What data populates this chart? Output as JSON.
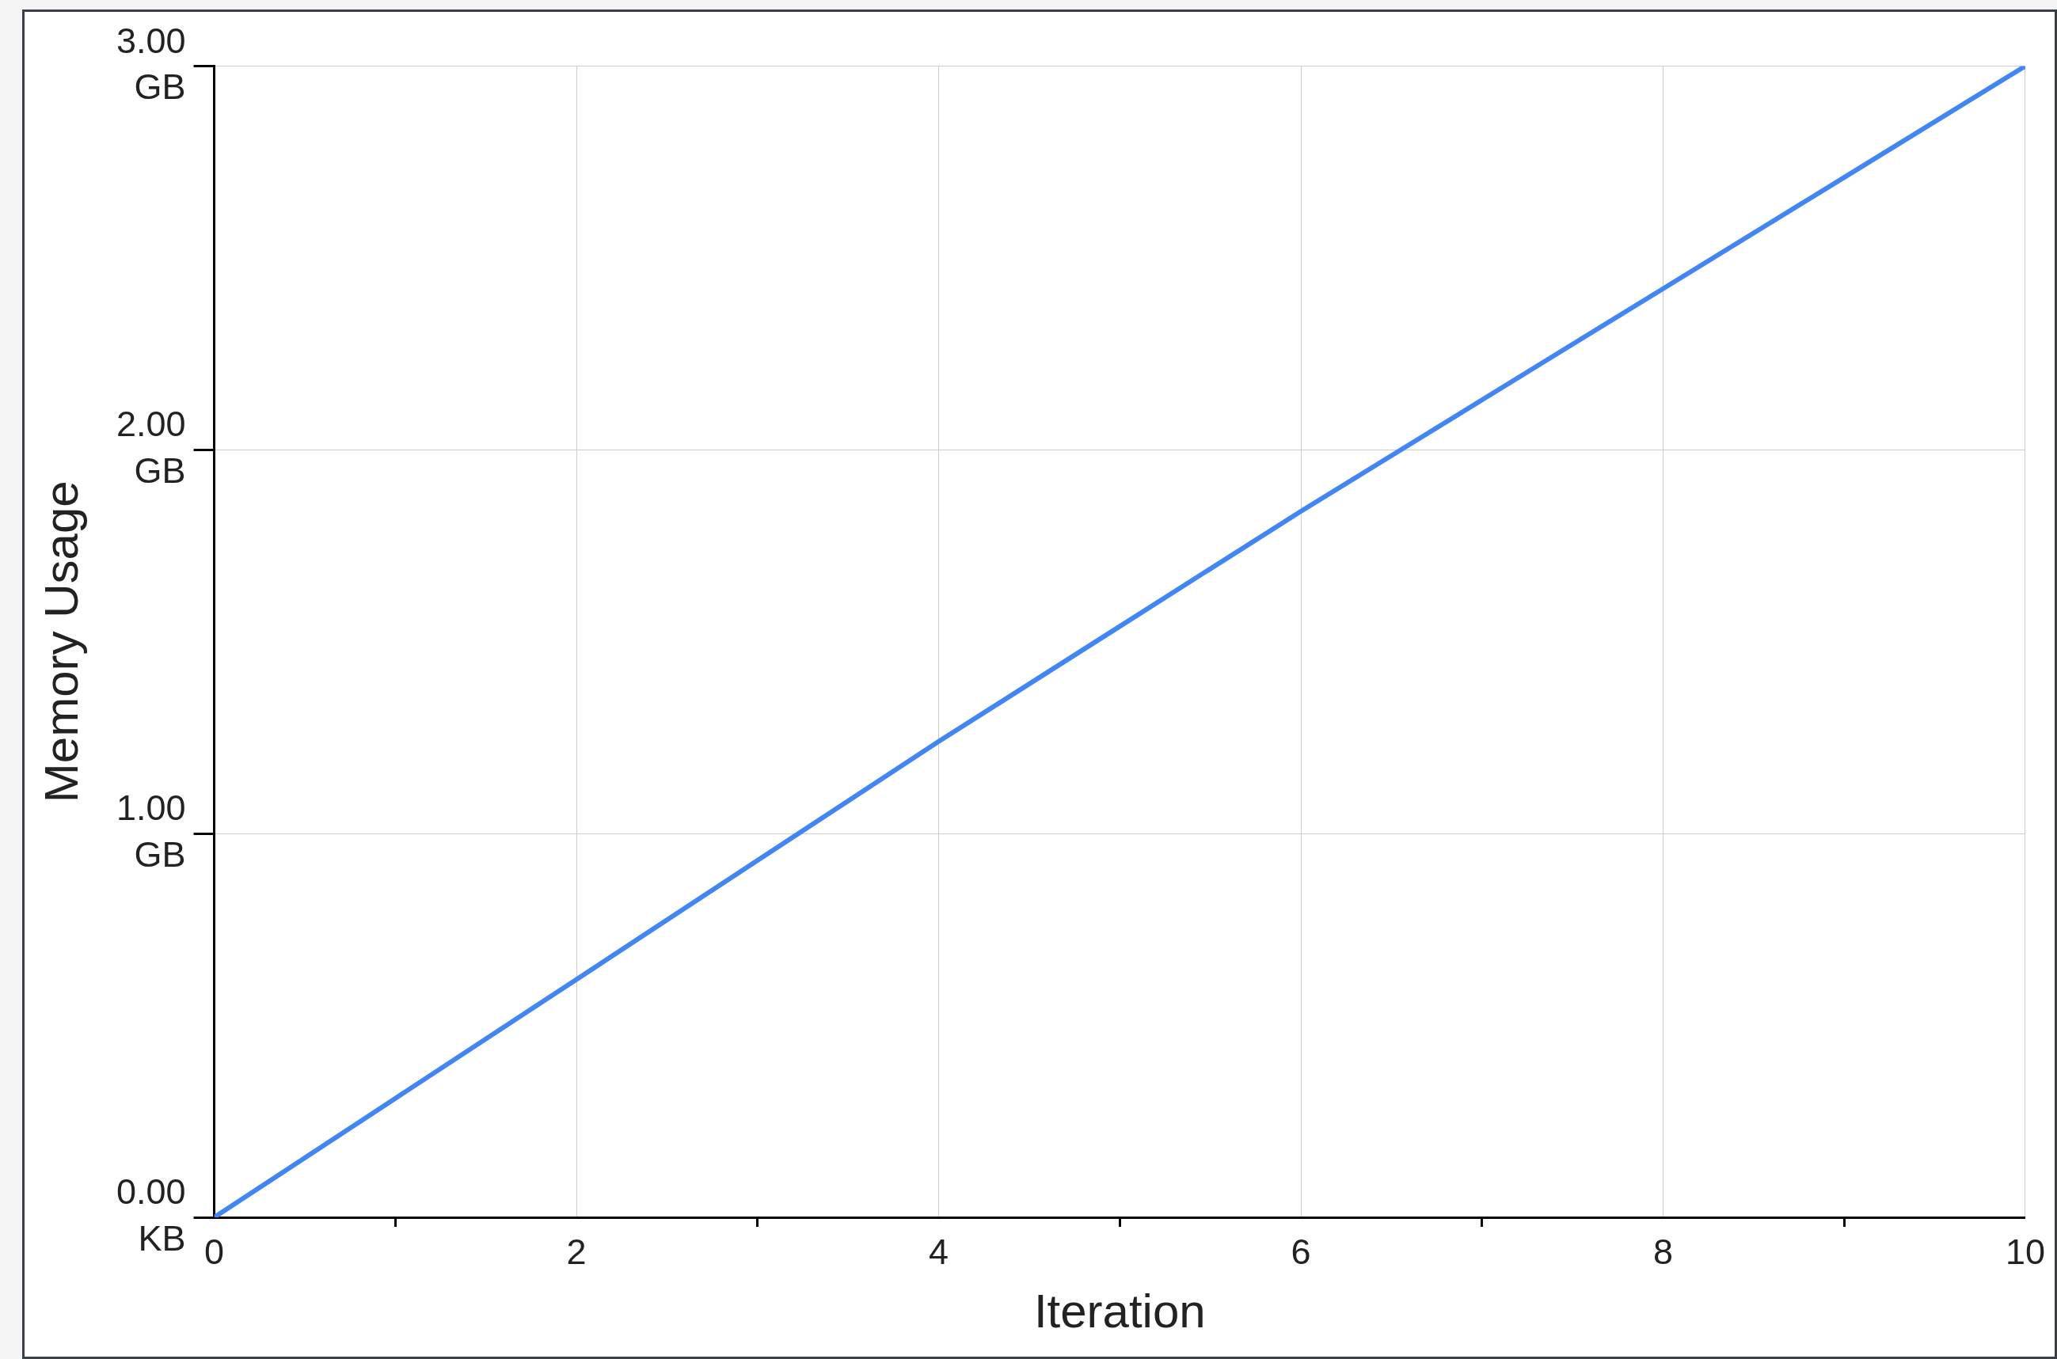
{
  "chart_data": {
    "type": "line",
    "xlabel": "Iteration",
    "ylabel": "Memory Usage",
    "x": [
      0,
      1,
      2,
      3,
      4,
      5,
      6,
      7,
      8,
      9,
      10
    ],
    "series": [
      {
        "color": "#4285f4",
        "values": [
          0,
          0.31,
          0.62,
          0.93,
          1.24,
          1.54,
          1.84,
          2.13,
          2.42,
          2.71,
          3.0
        ]
      }
    ],
    "xlim": [
      0,
      10
    ],
    "xticks": [
      0,
      {
        "value": 1,
        "label": null
      },
      2,
      {
        "value": 3,
        "label": null
      },
      4,
      {
        "value": 5,
        "label": null
      },
      6,
      {
        "value": 7,
        "label": null
      },
      8,
      {
        "value": 9,
        "label": null
      },
      10
    ],
    "ylim": [
      0,
      3
    ],
    "yticks": [
      {
        "value": 0,
        "label": "0.00 KB"
      },
      {
        "value": 1,
        "label": "1.00 GB"
      },
      {
        "value": 2,
        "label": "2.00 GB"
      },
      {
        "value": 3,
        "label": "3.00 GB"
      }
    ],
    "grid": true,
    "legend": false,
    "marker": "none",
    "line_style": "solid"
  }
}
